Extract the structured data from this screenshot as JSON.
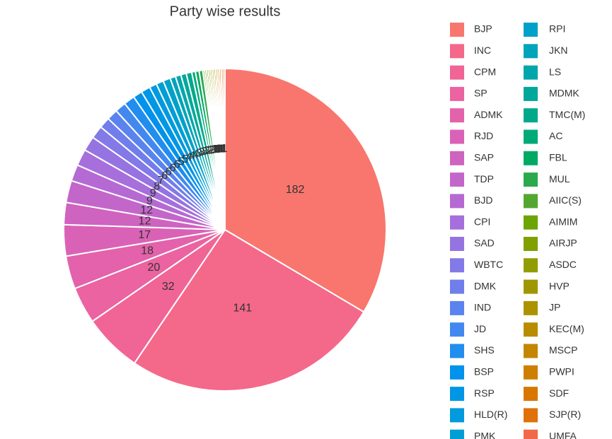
{
  "chart_data": {
    "type": "pie",
    "title": "Party wise results",
    "categories": [
      "BJP",
      "INC",
      "CPM",
      "SP",
      "ADMK",
      "RJD",
      "SAP",
      "TDP",
      "BJD",
      "CPI",
      "SAD",
      "WBTC",
      "DMK",
      "IND",
      "JD",
      "SHS",
      "BSP",
      "RSP",
      "HLD(R)",
      "PMK",
      "RPI",
      "JKN",
      "LS",
      "MDMK",
      "TMC(M)",
      "AC",
      "FBL",
      "MUL",
      "AIIC(S)",
      "AIMIM",
      "AIRJP",
      "ASDC",
      "HVP",
      "JP",
      "KEC(M)",
      "MSCP",
      "PWPI",
      "SDF",
      "SJP(R)",
      "UMFA"
    ],
    "values": [
      182,
      141,
      32,
      20,
      18,
      17,
      12,
      12,
      9,
      9,
      8,
      7,
      6,
      6,
      6,
      6,
      5,
      5,
      4,
      4,
      4,
      3,
      3,
      3,
      3,
      2,
      2,
      2,
      1,
      1,
      1,
      1,
      1,
      1,
      1,
      1,
      1,
      1,
      1,
      1
    ],
    "colors": [
      "#F8766D",
      "#F4688A",
      "#F06595",
      "#EB63A0",
      "#E362AB",
      "#DA62B6",
      "#CF63C0",
      "#C366CA",
      "#B56AD3",
      "#A66FDB",
      "#9574E2",
      "#8379E7",
      "#707EEB",
      "#5B83EE",
      "#4388EF",
      "#218DEF",
      "#0092EC",
      "#0096E6",
      "#009ADE",
      "#009ED4",
      "#00A1C8",
      "#00A4BA",
      "#00A6AB",
      "#00A89B",
      "#00A98A",
      "#00AA78",
      "#00AA64",
      "#2BA94D",
      "#53A731",
      "#6CA400",
      "#80A000",
      "#919C00",
      "#A09700",
      "#AD9200",
      "#B98C00",
      "#C48500",
      "#CE7E00",
      "#D77700",
      "#E07008",
      "#F0694A"
    ]
  }
}
